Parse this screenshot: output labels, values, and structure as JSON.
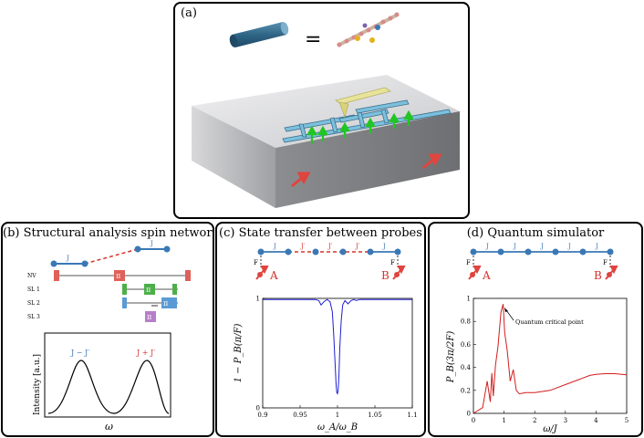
{
  "panel_a": {
    "label": "(a)",
    "equals": "="
  },
  "panel_b": {
    "title": "(b) Structural analysis spin network",
    "coupling_j": "J",
    "levels": [
      "NV",
      "SL 1",
      "SL 2",
      "SL 3"
    ],
    "pulse_pi": "π",
    "pulse_pi2": "π/2",
    "peak_left": "J − J′",
    "peak_right": "J + J′",
    "ylabel": "Intensity [a.u.]",
    "xlabel": "ω"
  },
  "panel_c": {
    "title": "(c) State transfer between probes",
    "chain_labels": [
      "J",
      "J′",
      "J′",
      "J′",
      "J"
    ],
    "field": "F",
    "probe_a": "A",
    "probe_b": "B"
  },
  "panel_d": {
    "title": "(d) Quantum simulator",
    "chain_labels": [
      "J",
      "J",
      "J",
      "J",
      "J",
      "J"
    ],
    "field": "F",
    "probe_a": "A",
    "probe_b": "B",
    "annotation": "Quantum critical point"
  },
  "colors": {
    "blue": "#3a78b5",
    "red": "#d7332c",
    "green": "#2db12d",
    "purple": "#b77ec9",
    "plot_blue": "#1f1fd0",
    "plot_red": "#d41c1c"
  },
  "chart_data": [
    {
      "type": "line",
      "title": "",
      "xlabel": "ω_A/ω_B",
      "ylabel": "1 − P_B(π/F)",
      "xlim": [
        0.9,
        1.1
      ],
      "ylim": [
        0,
        1
      ],
      "xticks": [
        "0.9",
        "0.95",
        "1",
        "1.05",
        "1.1"
      ],
      "yticks": [
        "0",
        "1"
      ],
      "series": [
        {
          "name": "transfer",
          "x": [
            0.9,
            0.97,
            0.975,
            0.978,
            0.982,
            0.986,
            0.99,
            0.993,
            0.995,
            0.997,
            0.998,
            0.999,
            1.0,
            1.001,
            1.002,
            1.003,
            1.005,
            1.007,
            1.01,
            1.014,
            1.018,
            1.022,
            1.025,
            1.03,
            1.1
          ],
          "y": [
            0.99,
            0.99,
            0.98,
            0.94,
            0.97,
            0.99,
            0.97,
            0.88,
            0.66,
            0.38,
            0.22,
            0.14,
            0.13,
            0.17,
            0.3,
            0.55,
            0.8,
            0.94,
            0.98,
            0.95,
            0.98,
            0.99,
            0.98,
            0.99,
            0.99
          ]
        }
      ]
    },
    {
      "type": "line",
      "title": "",
      "xlabel": "ω/J",
      "ylabel": "P_B(3π/2F)",
      "xlim": [
        0,
        5
      ],
      "ylim": [
        0,
        1
      ],
      "xticks": [
        "0",
        "1",
        "2",
        "3",
        "4",
        "5"
      ],
      "yticks": [
        "0",
        "0.2",
        "0.4",
        "0.6",
        "0.8",
        "1"
      ],
      "series": [
        {
          "name": "simulation",
          "x": [
            0.0,
            0.3,
            0.45,
            0.55,
            0.6,
            0.65,
            0.72,
            0.8,
            0.9,
            0.97,
            1.02,
            1.1,
            1.2,
            1.3,
            1.4,
            1.5,
            1.7,
            2.0,
            2.5,
            3.0,
            3.5,
            3.8,
            4.0,
            4.3,
            4.6,
            5.0
          ],
          "y": [
            0.0,
            0.05,
            0.28,
            0.1,
            0.35,
            0.15,
            0.42,
            0.58,
            0.88,
            0.95,
            0.7,
            0.55,
            0.28,
            0.38,
            0.2,
            0.17,
            0.18,
            0.18,
            0.2,
            0.25,
            0.3,
            0.33,
            0.34,
            0.345,
            0.345,
            0.335
          ]
        }
      ]
    }
  ]
}
